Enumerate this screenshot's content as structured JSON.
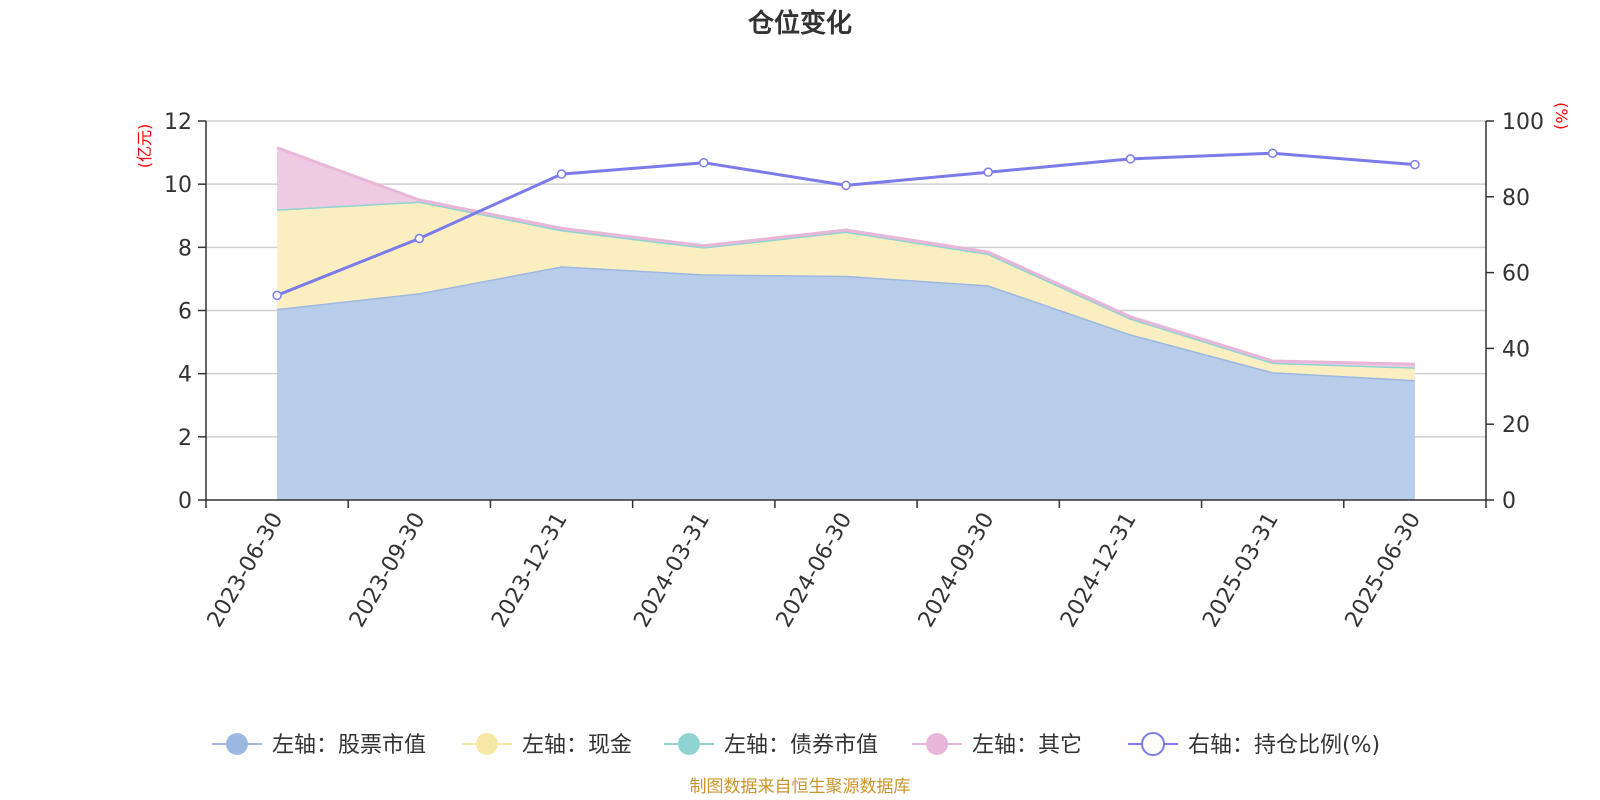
{
  "chart_data": {
    "type": "area",
    "title": "仓位变化",
    "x": [
      "2023-06-30",
      "2023-09-30",
      "2023-12-31",
      "2024-03-31",
      "2024-06-30",
      "2024-09-30",
      "2024-12-31",
      "2025-03-31",
      "2025-06-30"
    ],
    "left_axis": {
      "unit": "(亿元)",
      "ylim": [
        0,
        12
      ],
      "ticks": [
        0,
        2,
        4,
        6,
        8,
        10,
        12
      ]
    },
    "right_axis": {
      "unit": "(%)",
      "ylim": [
        0,
        100
      ],
      "ticks": [
        0,
        20,
        40,
        60,
        80,
        100
      ]
    },
    "stacked": true,
    "series": [
      {
        "name": "左轴：股票市值",
        "axis": "left",
        "type": "area",
        "color": "#9cb8e0",
        "fill": "#b8cdea",
        "values": [
          6.05,
          6.55,
          7.4,
          7.15,
          7.1,
          6.8,
          5.25,
          4.05,
          3.8
        ]
      },
      {
        "name": "左轴：现金",
        "axis": "left",
        "type": "area",
        "color": "#f8e8a6",
        "fill": "#fbefc2",
        "values": [
          3.15,
          2.9,
          1.15,
          0.85,
          1.4,
          1.0,
          0.5,
          0.3,
          0.4
        ]
      },
      {
        "name": "左轴：债券市值",
        "axis": "left",
        "type": "area",
        "color": "#8fd3d3",
        "fill": "#b6e4e4",
        "values": [
          0,
          0,
          0,
          0,
          0,
          0,
          0,
          0,
          0
        ]
      },
      {
        "name": "左轴：其它",
        "axis": "left",
        "type": "area",
        "color": "#e8b6d8",
        "fill": "#efcbe3",
        "values": [
          1.95,
          0.05,
          0.05,
          0.05,
          0.05,
          0.05,
          0.05,
          0.05,
          0.1
        ]
      },
      {
        "name": "右轴：持仓比例(%)",
        "axis": "right",
        "type": "line",
        "color": "#7b7bea",
        "values": [
          54,
          69,
          86,
          89,
          83,
          86.5,
          90,
          91.5,
          88.5
        ]
      }
    ],
    "grid": true,
    "legend_position": "bottom"
  },
  "source_text": "制图数据来自恒生聚源数据库"
}
